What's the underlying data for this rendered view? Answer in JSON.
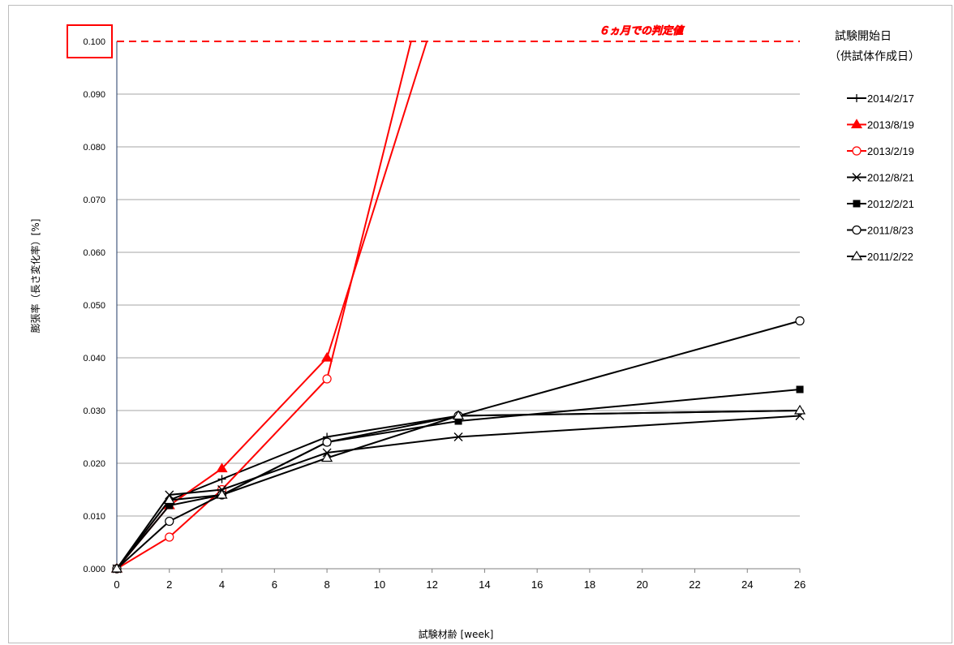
{
  "chart_data": {
    "type": "line",
    "xlabel": "試験材齢 [week]",
    "ylabel": "膨張率（長さ変化率）[%]",
    "xlim": [
      0,
      26
    ],
    "ylim": [
      0.0,
      0.1
    ],
    "x_ticks": [
      0,
      2,
      4,
      6,
      8,
      10,
      12,
      14,
      16,
      18,
      20,
      22,
      24,
      26
    ],
    "y_ticks": [
      "0.000",
      "0.010",
      "0.020",
      "0.030",
      "0.040",
      "0.050",
      "0.060",
      "0.070",
      "0.080",
      "0.090",
      "0.100"
    ],
    "grid": "horizontal",
    "threshold": {
      "value": 0.1,
      "label": "６ヵ月での判定値",
      "color": "#ff0000",
      "style": "dashed"
    },
    "legend_title": [
      "試験開始日",
      "（供試体作成日）"
    ],
    "legend_position": "right",
    "series": [
      {
        "name": "2014/2/17",
        "color": "#000000",
        "marker": "plus",
        "x": [
          0,
          2,
          4,
          8,
          13,
          26
        ],
        "y": [
          0.0,
          0.013,
          0.017,
          0.025,
          0.029,
          0.03
        ]
      },
      {
        "name": "2013/8/19",
        "color": "#ff0000",
        "marker": "triangle-filled",
        "x": [
          0,
          2,
          4,
          8,
          11.8
        ],
        "y": [
          0.0,
          0.012,
          0.019,
          0.04,
          0.1
        ]
      },
      {
        "name": "2013/2/19",
        "color": "#ff0000",
        "marker": "circle-open",
        "x": [
          0,
          2,
          4,
          8,
          11.2
        ],
        "y": [
          0.0,
          0.006,
          0.015,
          0.036,
          0.1
        ]
      },
      {
        "name": "2012/8/21",
        "color": "#000000",
        "marker": "x",
        "x": [
          0,
          2,
          4,
          8,
          13,
          26
        ],
        "y": [
          0.0,
          0.014,
          0.015,
          0.022,
          0.025,
          0.029
        ]
      },
      {
        "name": "2012/2/21",
        "color": "#000000",
        "marker": "square-filled",
        "x": [
          0,
          2,
          4,
          8,
          13,
          26
        ],
        "y": [
          0.0,
          0.012,
          0.014,
          0.024,
          0.028,
          0.034
        ]
      },
      {
        "name": "2011/8/23",
        "color": "#000000",
        "marker": "circle-open",
        "x": [
          0,
          2,
          4,
          8,
          13,
          26
        ],
        "y": [
          0.0,
          0.009,
          0.014,
          0.024,
          0.029,
          0.047
        ]
      },
      {
        "name": "2011/2/22",
        "color": "#000000",
        "marker": "triangle-open",
        "x": [
          0,
          2,
          4,
          8,
          13,
          26
        ],
        "y": [
          0.0,
          0.013,
          0.014,
          0.021,
          0.029,
          0.03
        ]
      }
    ],
    "highlight_box": {
      "tick": "0.100",
      "color": "#ff0000"
    }
  }
}
